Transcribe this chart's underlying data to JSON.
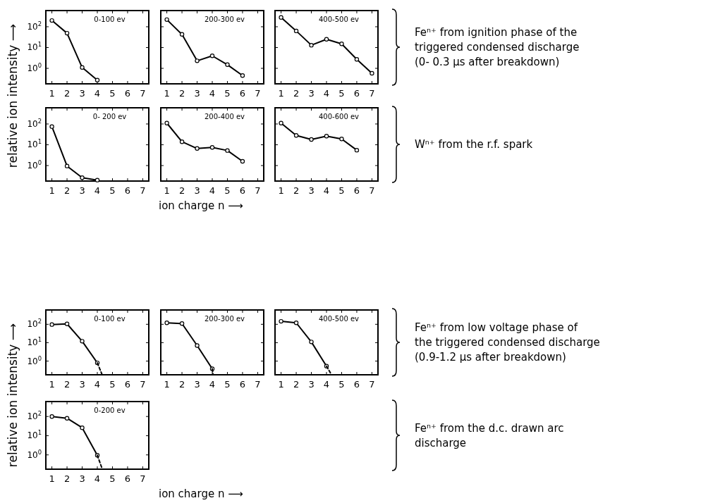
{
  "chart_data": [
    {
      "type": "line",
      "title": "0-100 ev",
      "ylabel": "relative ion intensity ⟶",
      "log": true,
      "marker": "circle",
      "xlim": [
        0.6,
        7.4
      ],
      "xticks": [
        1,
        2,
        3,
        4,
        5,
        6,
        7
      ],
      "ylim": [
        0.18,
        600
      ],
      "yticks": [
        {
          "value": 1,
          "label": "10$^{0}$"
        },
        {
          "value": 10,
          "label": "10$^{1}$"
        },
        {
          "value": 100,
          "label": "10$^{2}$"
        }
      ],
      "series": [
        {
          "x": [
            1,
            2,
            3,
            4
          ],
          "values": [
            200,
            49,
            1.1,
            0.27
          ],
          "color": "#000000"
        }
      ]
    },
    {
      "type": "line",
      "title": "200-300 ev",
      "log": true,
      "marker": "circle",
      "tick_labels": "x",
      "xlim": [
        0.6,
        7.4
      ],
      "xticks": [
        1,
        2,
        3,
        4,
        5,
        6,
        7
      ],
      "ylim": [
        0.18,
        600
      ],
      "yticks": [
        {
          "value": 1,
          "label": null
        },
        {
          "value": 10,
          "label": null
        },
        {
          "value": 100,
          "label": null
        }
      ],
      "series": [
        {
          "x": [
            1,
            2,
            3,
            4,
            5,
            6
          ],
          "values": [
            220,
            43,
            2.3,
            4,
            1.5,
            0.45
          ],
          "color": "#000000"
        }
      ]
    },
    {
      "type": "line",
      "title": "400-500 ev",
      "log": true,
      "marker": "circle",
      "tick_labels": "x",
      "xlim": [
        0.6,
        7.4
      ],
      "xticks": [
        1,
        2,
        3,
        4,
        5,
        6,
        7
      ],
      "ylim": [
        0.18,
        600
      ],
      "yticks": [
        {
          "value": 1,
          "label": null
        },
        {
          "value": 10,
          "label": null
        },
        {
          "value": 100,
          "label": null
        }
      ],
      "annotations": [
        "Feⁿ⁺ from ignition phase of the\ntriggered condensed discharge\n(0- 0.3 μs after breakdown)"
      ],
      "series": [
        {
          "x": [
            1,
            2,
            3,
            4,
            5,
            6,
            7
          ],
          "values": [
            280,
            63,
            13,
            25,
            15,
            2.7,
            0.58
          ],
          "color": "#000000"
        }
      ]
    },
    {
      "type": "line",
      "title": "0- 200 ev",
      "log": true,
      "marker": "circle",
      "xlim": [
        0.6,
        7.4
      ],
      "xticks": [
        1,
        2,
        3,
        4,
        5,
        6,
        7
      ],
      "ylim": [
        0.18,
        600
      ],
      "yticks": [
        {
          "value": 1,
          "label": "10$^{0}$"
        },
        {
          "value": 10,
          "label": "10$^{1}$"
        },
        {
          "value": 100,
          "label": "10$^{2}$"
        }
      ],
      "series": [
        {
          "x": [
            1,
            2,
            3,
            4
          ],
          "values": [
            75,
            0.95,
            0.26,
            0.2
          ],
          "color": "#000000"
        }
      ]
    },
    {
      "type": "line",
      "title": "200-400 ev",
      "xlabel": "ion charge n ⟶",
      "log": true,
      "marker": "circle",
      "tick_labels": "x",
      "xlim": [
        0.6,
        7.4
      ],
      "xticks": [
        1,
        2,
        3,
        4,
        5,
        6,
        7
      ],
      "ylim": [
        0.18,
        600
      ],
      "yticks": [
        {
          "value": 1,
          "label": null
        },
        {
          "value": 10,
          "label": null
        },
        {
          "value": 100,
          "label": null
        }
      ],
      "series": [
        {
          "x": [
            1,
            2,
            3,
            4,
            5,
            6
          ],
          "values": [
            110,
            14,
            6.6,
            7.5,
            5.3,
            1.6
          ],
          "color": "#000000"
        }
      ]
    },
    {
      "type": "line",
      "title": "400-600 ev",
      "log": true,
      "marker": "circle",
      "tick_labels": "x",
      "xlim": [
        0.6,
        7.4
      ],
      "xticks": [
        1,
        2,
        3,
        4,
        5,
        6,
        7
      ],
      "ylim": [
        0.18,
        600
      ],
      "yticks": [
        {
          "value": 1,
          "label": null
        },
        {
          "value": 10,
          "label": null
        },
        {
          "value": 100,
          "label": null
        }
      ],
      "annotations": [
        "Wⁿ⁺ from the r.f. spark"
      ],
      "series": [
        {
          "x": [
            1,
            2,
            3,
            4,
            5,
            6
          ],
          "values": [
            110,
            28,
            18,
            26,
            19,
            5.5
          ],
          "color": "#000000"
        }
      ]
    },
    {
      "type": "line",
      "title": "0-100 ev",
      "ylabel": "relative ion intensity ⟶",
      "log": true,
      "marker": "circle",
      "xlim": [
        0.6,
        7.4
      ],
      "xticks": [
        1,
        2,
        3,
        4,
        5,
        6,
        7
      ],
      "ylim": [
        0.18,
        600
      ],
      "yticks": [
        {
          "value": 1,
          "label": "10$^{0}$"
        },
        {
          "value": 10,
          "label": "10$^{1}$"
        },
        {
          "value": 100,
          "label": "10$^{2}$"
        }
      ],
      "series": [
        {
          "x": [
            1,
            2,
            3,
            4
          ],
          "values": [
            97,
            105,
            12,
            0.8
          ],
          "color": "#000000"
        },
        {
          "x": [
            4,
            4.3
          ],
          "values": [
            0.8,
            0.2
          ],
          "color": "#000000",
          "line_style": "dashed",
          "marker": "none"
        }
      ]
    },
    {
      "type": "line",
      "title": "200-300 ev",
      "log": true,
      "marker": "circle",
      "tick_labels": "x",
      "xlim": [
        0.6,
        7.4
      ],
      "xticks": [
        1,
        2,
        3,
        4,
        5,
        6,
        7
      ],
      "ylim": [
        0.18,
        600
      ],
      "yticks": [
        {
          "value": 1,
          "label": null
        },
        {
          "value": 10,
          "label": null
        },
        {
          "value": 100,
          "label": null
        }
      ],
      "series": [
        {
          "x": [
            1,
            2,
            3,
            4
          ],
          "values": [
            120,
            110,
            7,
            0.38
          ],
          "color": "#000000"
        },
        {
          "x": [
            4,
            4.05
          ],
          "values": [
            0.38,
            0.2
          ],
          "color": "#000000",
          "line_style": "dashed",
          "marker": "none"
        }
      ]
    },
    {
      "type": "line",
      "title": "400-500 ev",
      "log": true,
      "marker": "circle",
      "tick_labels": "x",
      "xlim": [
        0.6,
        7.4
      ],
      "xticks": [
        1,
        2,
        3,
        4,
        5,
        6,
        7
      ],
      "ylim": [
        0.18,
        600
      ],
      "yticks": [
        {
          "value": 1,
          "label": null
        },
        {
          "value": 10,
          "label": null
        },
        {
          "value": 100,
          "label": null
        }
      ],
      "annotations": [
        "Feⁿ⁺ from low voltage phase of\nthe triggered condensed discharge\n(0.9-1.2 μs after breakdown)"
      ],
      "series": [
        {
          "x": [
            1,
            2,
            3,
            4
          ],
          "values": [
            145,
            120,
            11,
            0.53
          ],
          "color": "#000000"
        },
        {
          "x": [
            4,
            4.3
          ],
          "values": [
            0.53,
            0.2
          ],
          "color": "#000000",
          "line_style": "dashed",
          "marker": "none"
        }
      ]
    },
    {
      "type": "line",
      "title": "0-200 ev",
      "xlabel": "ion charge n ⟶",
      "log": true,
      "marker": "circle",
      "xlim": [
        0.6,
        7.4
      ],
      "xticks": [
        1,
        2,
        3,
        4,
        5,
        6,
        7
      ],
      "ylim": [
        0.18,
        600
      ],
      "yticks": [
        {
          "value": 1,
          "label": "10$^{0}$"
        },
        {
          "value": 10,
          "label": "10$^{1}$"
        },
        {
          "value": 100,
          "label": "10$^{2}$"
        }
      ],
      "annotations": [
        "Feⁿ⁺ from the d.c. drawn arc\ndischarge"
      ],
      "series": [
        {
          "x": [
            1,
            2,
            3,
            4
          ],
          "values": [
            100,
            81,
            26,
            0.95
          ],
          "color": "#000000"
        },
        {
          "x": [
            4,
            4.3
          ],
          "values": [
            0.95,
            0.21
          ],
          "color": "#000000",
          "line_style": "dashed",
          "marker": "none"
        }
      ]
    }
  ]
}
